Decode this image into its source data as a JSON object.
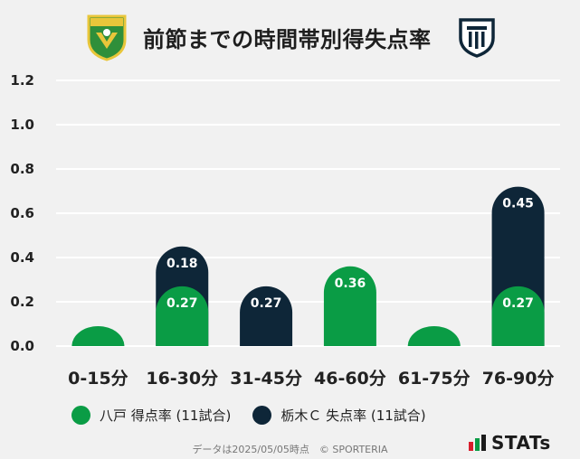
{
  "header": {
    "title": "前節までの時間帯別得失点率"
  },
  "colors": {
    "home": "#0a9c45",
    "away": "#0e2638",
    "grid": "#ffffff",
    "background": "#f1f1f1"
  },
  "legend": {
    "home_label": "八戸 得点率 (11試合)",
    "away_label": "栃木Ｃ 失点率 (11試合)"
  },
  "footer": {
    "note": "データは2025/05/05時点　© SPORTERIA",
    "brand": "STATs"
  },
  "chart_data": {
    "type": "bar",
    "stacked": true,
    "categories": [
      "0-15分",
      "16-30分",
      "31-45分",
      "46-60分",
      "61-75分",
      "76-90分"
    ],
    "series": [
      {
        "name": "八戸 得点率 (11試合)",
        "values": [
          0.0,
          0.27,
          0.0,
          0.36,
          0.0,
          0.27
        ],
        "labels": [
          "",
          "0.27",
          "",
          "0.36",
          "",
          "0.27"
        ]
      },
      {
        "name": "栃木Ｃ 失点率 (11試合)",
        "values": [
          0.0,
          0.18,
          0.27,
          0.0,
          0.0,
          0.45
        ],
        "labels": [
          "",
          "0.18",
          "0.27",
          "",
          "",
          "0.45"
        ]
      }
    ],
    "ylim": [
      0,
      1.2
    ],
    "yticks": [
      "0.0",
      "0.2",
      "0.4",
      "0.6",
      "0.8",
      "1.0",
      "1.2"
    ],
    "grid": true,
    "legend_position": "bottom"
  }
}
